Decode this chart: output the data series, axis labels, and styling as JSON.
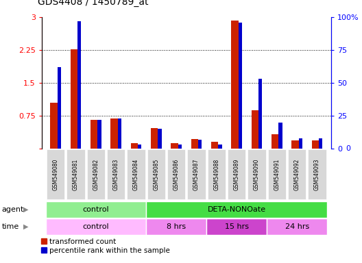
{
  "title": "GDS4408 / 1450789_at",
  "samples": [
    "GSM549080",
    "GSM549081",
    "GSM549082",
    "GSM549083",
    "GSM549084",
    "GSM549085",
    "GSM549086",
    "GSM549087",
    "GSM549088",
    "GSM549089",
    "GSM549090",
    "GSM549091",
    "GSM549092",
    "GSM549093"
  ],
  "transformed_count": [
    1.05,
    2.27,
    0.65,
    0.68,
    0.12,
    0.47,
    0.12,
    0.22,
    0.15,
    2.92,
    0.87,
    0.32,
    0.18,
    0.18
  ],
  "percentile_rank": [
    62,
    97,
    22,
    23,
    3,
    15,
    3,
    7,
    3,
    96,
    53,
    20,
    8,
    8
  ],
  "ylim_left": [
    0,
    3
  ],
  "ylim_right": [
    0,
    100
  ],
  "yticks_left": [
    0,
    0.75,
    1.5,
    2.25,
    3
  ],
  "yticks_right": [
    0,
    25,
    50,
    75,
    100
  ],
  "agent_labels": [
    {
      "text": "control",
      "start": 0,
      "end": 4,
      "color": "#90ee90"
    },
    {
      "text": "DETA-NONOate",
      "start": 5,
      "end": 13,
      "color": "#44dd44"
    }
  ],
  "time_labels": [
    {
      "text": "control",
      "start": 0,
      "end": 4,
      "color": "#ffbbff"
    },
    {
      "text": "8 hrs",
      "start": 5,
      "end": 7,
      "color": "#ee88ee"
    },
    {
      "text": "15 hrs",
      "start": 8,
      "end": 10,
      "color": "#cc44cc"
    },
    {
      "text": "24 hrs",
      "start": 11,
      "end": 13,
      "color": "#ee88ee"
    }
  ],
  "bar_color_red": "#cc2200",
  "bar_color_blue": "#0000cc",
  "legend_labels": [
    "transformed count",
    "percentile rank within the sample"
  ]
}
